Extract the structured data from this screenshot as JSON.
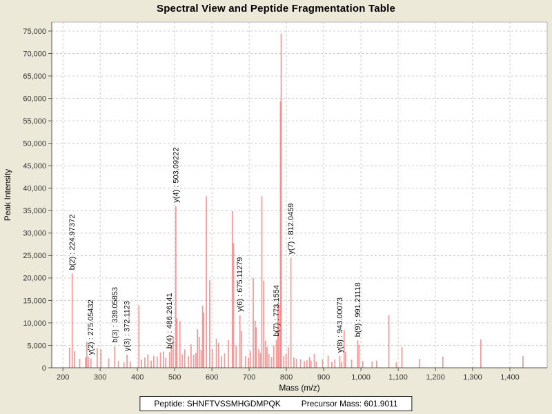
{
  "title": "Spectral View and Peptide Fragmentation Table",
  "footer": {
    "peptide": "Peptide: SHNFTVSSMHGDMPQK",
    "precursor": "Precursor Mass: 601.9011"
  },
  "colors": {
    "background": "#ece9d8",
    "plot_background": "#ffffff",
    "grid": "#cccccc",
    "peak": "#f05e5e",
    "axis": "#555555",
    "border": "#b5b5b5",
    "tick_text": "#333333",
    "label_text": "#111111"
  },
  "chart_data": {
    "type": "bar",
    "title": "Spectral View and Peptide Fragmentation Table",
    "xlabel": "Mass (m/z)",
    "ylabel": "Peak Intensity",
    "xlim": [
      170,
      1500
    ],
    "ylim": [
      0,
      77000
    ],
    "xticks": [
      200,
      300,
      400,
      500,
      600,
      700,
      800,
      900,
      1000,
      1100,
      1200,
      1300,
      1400
    ],
    "yticks": [
      0,
      5000,
      10000,
      15000,
      20000,
      25000,
      30000,
      35000,
      40000,
      45000,
      50000,
      55000,
      60000,
      65000,
      70000,
      75000
    ],
    "grid": true,
    "legend": false,
    "annotated_peaks": [
      {
        "ion": "b(2)",
        "mz": 224.97372,
        "intensity": 21000
      },
      {
        "ion": "y(2)",
        "mz": 275.05432,
        "intensity": 2100
      },
      {
        "ion": "b(3)",
        "mz": 339.05853,
        "intensity": 4800
      },
      {
        "ion": "y(3)",
        "mz": 372.1123,
        "intensity": 2900
      },
      {
        "ion": "b(4)",
        "mz": 486.26141,
        "intensity": 3500
      },
      {
        "ion": "y(4)",
        "mz": 503.09222,
        "intensity": 36000
      },
      {
        "ion": "y(6)",
        "mz": 675.11279,
        "intensity": 11700
      },
      {
        "ion": "b(7)",
        "mz": 773.1554,
        "intensity": 6200
      },
      {
        "ion": "y(7)",
        "mz": 812.0459,
        "intensity": 24500
      },
      {
        "ion": "y(8)",
        "mz": 943.00073,
        "intensity": 2600
      },
      {
        "ion": "b(9)",
        "mz": 991.21118,
        "intensity": 6100
      }
    ],
    "peaks": [
      [
        218,
        4500
      ],
      [
        224.97372,
        21000,
        "b(2) : 224.97372"
      ],
      [
        231,
        3700
      ],
      [
        245,
        2000
      ],
      [
        261,
        2300
      ],
      [
        264,
        5800
      ],
      [
        268,
        2400
      ],
      [
        275.05432,
        2100,
        "y(2) : 275.05432"
      ],
      [
        292,
        4400
      ],
      [
        302,
        4100
      ],
      [
        323,
        2100
      ],
      [
        339.05853,
        4800,
        "b(3) : 339.05853"
      ],
      [
        349,
        1500
      ],
      [
        364,
        1200
      ],
      [
        372.1123,
        2900,
        "y(3) : 372.1123"
      ],
      [
        381,
        1400
      ],
      [
        404,
        13900
      ],
      [
        411,
        1800
      ],
      [
        420,
        2300
      ],
      [
        428,
        3000
      ],
      [
        437,
        1600
      ],
      [
        444,
        2600
      ],
      [
        453,
        2500
      ],
      [
        462,
        3400
      ],
      [
        470,
        3600
      ],
      [
        476,
        2200
      ],
      [
        486.26141,
        3500,
        "b(4) : 486.26141"
      ],
      [
        491,
        5000
      ],
      [
        496,
        6800
      ],
      [
        503.09222,
        36000,
        "y(4) : 503.09222"
      ],
      [
        506,
        11000
      ],
      [
        514,
        10400
      ],
      [
        520,
        3000
      ],
      [
        527,
        4100
      ],
      [
        537,
        2600
      ],
      [
        544,
        5200
      ],
      [
        551,
        2900
      ],
      [
        557,
        3300
      ],
      [
        561,
        8600
      ],
      [
        566,
        6900
      ],
      [
        571,
        4000
      ],
      [
        575,
        13800
      ],
      [
        578,
        12300
      ],
      [
        585,
        38200
      ],
      [
        594,
        19500
      ],
      [
        601,
        4200
      ],
      [
        612,
        6500
      ],
      [
        618,
        5500
      ],
      [
        626,
        2600
      ],
      [
        634,
        3200
      ],
      [
        644,
        6200
      ],
      [
        655,
        34900
      ],
      [
        658,
        27800
      ],
      [
        665,
        5000
      ],
      [
        675.11279,
        11700,
        "y(6) : 675.11279"
      ],
      [
        679,
        8200
      ],
      [
        690,
        2600
      ],
      [
        698,
        2200
      ],
      [
        703,
        3700
      ],
      [
        711,
        20000
      ],
      [
        716,
        10500
      ],
      [
        719,
        9000
      ],
      [
        726,
        4200
      ],
      [
        730,
        3300
      ],
      [
        734,
        38200
      ],
      [
        739,
        19400
      ],
      [
        744,
        6000
      ],
      [
        748,
        4600
      ],
      [
        753,
        3100
      ],
      [
        760,
        2400
      ],
      [
        766,
        5000
      ],
      [
        773.1554,
        6200,
        "b(7) : 773.1554"
      ],
      [
        777,
        14300
      ],
      [
        780,
        14000
      ],
      [
        784,
        59300
      ],
      [
        786,
        74400
      ],
      [
        793,
        2600
      ],
      [
        799,
        3100
      ],
      [
        805,
        4600
      ],
      [
        812.0459,
        24500,
        "y(7) : 812.0459"
      ],
      [
        820,
        2300
      ],
      [
        827,
        2000
      ],
      [
        838,
        1900
      ],
      [
        848,
        1500
      ],
      [
        855,
        1700
      ],
      [
        862,
        2400
      ],
      [
        866,
        1600
      ],
      [
        875,
        3100
      ],
      [
        880,
        1400
      ],
      [
        897,
        1900
      ],
      [
        912,
        2700
      ],
      [
        922,
        1300
      ],
      [
        930,
        1800
      ],
      [
        943.00073,
        2600,
        "y(8) : 943.00073"
      ],
      [
        948,
        1300
      ],
      [
        955,
        8400
      ],
      [
        959,
        3500
      ],
      [
        975,
        1800
      ],
      [
        991.21118,
        6100,
        "b(9) : 991.21118"
      ],
      [
        995,
        5000
      ],
      [
        1005,
        1500
      ],
      [
        1030,
        1400
      ],
      [
        1042,
        1600
      ],
      [
        1075,
        11700
      ],
      [
        1095,
        1200
      ],
      [
        1110,
        4600
      ],
      [
        1157,
        2000
      ],
      [
        1220,
        2500
      ],
      [
        1322,
        6300
      ],
      [
        1435,
        2600
      ]
    ]
  }
}
